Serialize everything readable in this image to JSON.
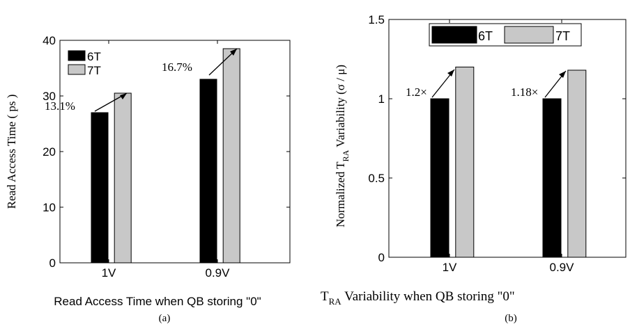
{
  "chart_data": [
    {
      "type": "bar",
      "panel_label": "(a)",
      "categories": [
        "1V",
        "0.9V"
      ],
      "series": [
        {
          "name": "6T",
          "values": [
            27,
            33
          ],
          "color": "#000000"
        },
        {
          "name": "7T",
          "values": [
            30.5,
            38.5
          ],
          "color": "#c8c8c8"
        }
      ],
      "ylim": [
        0,
        40
      ],
      "yticks": [
        "0",
        "10",
        "20",
        "30",
        "40"
      ],
      "ylabel": "Read Access Time ( ps )",
      "xlabel": "Read Access Time when QB storing \"0\"",
      "annotations": [
        "13.1%",
        "16.7%"
      ],
      "legend_position": "top-left",
      "grid": false
    },
    {
      "type": "bar",
      "panel_label": "(b)",
      "categories": [
        "1V",
        "0.9V"
      ],
      "series": [
        {
          "name": "6T",
          "values": [
            1.0,
            1.0
          ],
          "color": "#000000"
        },
        {
          "name": "7T",
          "values": [
            1.2,
            1.18
          ],
          "color": "#c8c8c8"
        }
      ],
      "ylim": [
        0,
        1.5
      ],
      "yticks": [
        "0",
        "0.5",
        "1",
        "1.5"
      ],
      "ylabel": {
        "pre": "Normalized  T",
        "sub": "RA",
        "post": "  Variability (σ / μ)"
      },
      "xlabel": {
        "pre": "T",
        "sub": "RA",
        "post": " Variability when QB storing \"0\""
      },
      "annotations": [
        "1.2×",
        "1.18×"
      ],
      "legend_position": "top-center",
      "grid": false
    }
  ]
}
